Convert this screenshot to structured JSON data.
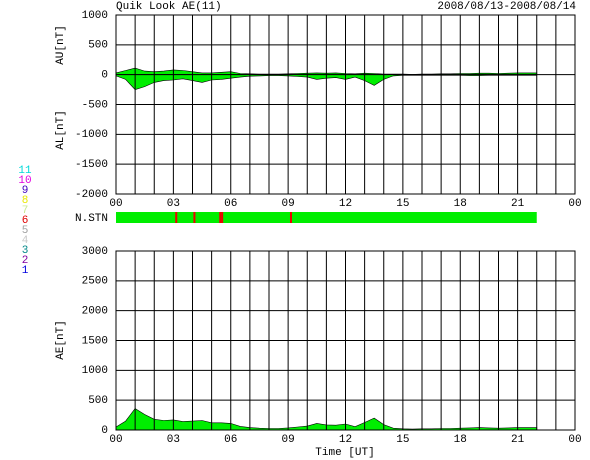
{
  "chart_data": [
    {
      "type": "area",
      "title": "Quik Look AE(11)",
      "date_range": "2008/08/13-2008/08/14",
      "ylabels": [
        "AU[nT]",
        "AL[nT]"
      ],
      "x": [
        0,
        0.5,
        1,
        1.5,
        2,
        2.5,
        3,
        3.5,
        4,
        4.5,
        5,
        5.5,
        6,
        6.5,
        7,
        7.5,
        8,
        8.5,
        9,
        9.5,
        10,
        10.5,
        11,
        11.5,
        12,
        12.5,
        13,
        13.5,
        14,
        14.5,
        15,
        15.5,
        16,
        16.5,
        17,
        17.5,
        18,
        18.5,
        19,
        19.5,
        20,
        20.5,
        21,
        21.5,
        22
      ],
      "series": [
        {
          "color": "#00ee00",
          "values": [
            30,
            70,
            110,
            60,
            50,
            60,
            80,
            70,
            50,
            30,
            30,
            40,
            50,
            20,
            15,
            10,
            10,
            10,
            15,
            20,
            25,
            30,
            25,
            30,
            20,
            15,
            25,
            20,
            10,
            10,
            10,
            5,
            10,
            10,
            15,
            15,
            20,
            20,
            25,
            25,
            20,
            25,
            30,
            30,
            30
          ]
        },
        {
          "color": "#00ee00",
          "values": [
            -20,
            -80,
            -250,
            -200,
            -130,
            -100,
            -90,
            -70,
            -100,
            -130,
            -90,
            -80,
            -60,
            -40,
            -25,
            -20,
            -15,
            -15,
            -20,
            -30,
            -40,
            -80,
            -60,
            -50,
            -80,
            -40,
            -100,
            -180,
            -80,
            -20,
            -10,
            -10,
            -10,
            -10,
            -10,
            -10,
            -10,
            -15,
            -15,
            -10,
            -10,
            -10,
            -10,
            -10,
            -10
          ]
        }
      ],
      "xlim": [
        0,
        24
      ],
      "ylim": [
        -2000,
        1000
      ],
      "xticks": [
        {
          "value": 0,
          "label": "00"
        },
        {
          "value": 3,
          "label": "03"
        },
        {
          "value": 6,
          "label": "06"
        },
        {
          "value": 9,
          "label": "09"
        },
        12,
        15,
        18,
        21,
        {
          "value": 24,
          "label": "00"
        }
      ],
      "minor_xticks": [
        1,
        2,
        4,
        5,
        7,
        8,
        10,
        11,
        13,
        14,
        16,
        17,
        19,
        20,
        22,
        23
      ],
      "yticks": [
        1000,
        500,
        0,
        -500,
        -1000,
        -1500,
        -2000
      ],
      "grid": true
    },
    {
      "type": "strip",
      "label": "N.STN",
      "xlim": [
        0,
        24
      ],
      "span": [
        0,
        22
      ],
      "color": "#00ee00",
      "drop_color": "#ee0000",
      "drops": [
        3.15,
        4.1,
        5.45,
        5.55,
        9.15
      ],
      "station_numbers": [
        {
          "label": "11",
          "color": "#00d8d8"
        },
        {
          "label": "10",
          "color": "#e000e0"
        },
        {
          "label": "9",
          "color": "#4000c0"
        },
        {
          "label": "8",
          "color": "#e8e800"
        },
        {
          "label": "7",
          "color": "#c8e890"
        },
        {
          "label": "6",
          "color": "#e00000"
        },
        {
          "label": "5",
          "color": "#a0a0a0"
        },
        {
          "label": "4",
          "color": "#c8c8c8"
        },
        {
          "label": "3",
          "color": "#008888"
        },
        {
          "label": "2",
          "color": "#8000a0"
        },
        {
          "label": "1",
          "color": "#0000e0"
        }
      ]
    },
    {
      "type": "area",
      "ylabel": "AE[nT]",
      "x_label": "Time [UT]",
      "x": [
        0,
        0.5,
        1,
        1.5,
        2,
        2.5,
        3,
        3.5,
        4,
        4.5,
        5,
        5.5,
        6,
        6.5,
        7,
        7.5,
        8,
        8.5,
        9,
        9.5,
        10,
        10.5,
        11,
        11.5,
        12,
        12.5,
        13,
        13.5,
        14,
        14.5,
        15,
        15.5,
        16,
        16.5,
        17,
        17.5,
        18,
        18.5,
        19,
        19.5,
        20,
        20.5,
        21,
        21.5,
        22
      ],
      "series": [
        {
          "color": "#00ee00",
          "values": [
            50,
            150,
            360,
            260,
            180,
            160,
            170,
            140,
            150,
            160,
            120,
            120,
            110,
            60,
            40,
            30,
            25,
            25,
            35,
            50,
            65,
            110,
            85,
            80,
            100,
            55,
            125,
            200,
            90,
            30,
            20,
            15,
            20,
            20,
            25,
            25,
            30,
            35,
            40,
            35,
            30,
            35,
            40,
            40,
            40
          ]
        }
      ],
      "xlim": [
        0,
        24
      ],
      "ylim": [
        0,
        3000
      ],
      "xticks": [
        {
          "value": 0,
          "label": "00"
        },
        {
          "value": 3,
          "label": "03"
        },
        {
          "value": 6,
          "label": "06"
        },
        {
          "value": 9,
          "label": "09"
        },
        12,
        15,
        18,
        21,
        {
          "value": 24,
          "label": "00"
        }
      ],
      "minor_xticks": [
        1,
        2,
        4,
        5,
        7,
        8,
        10,
        11,
        13,
        14,
        16,
        17,
        19,
        20,
        22,
        23
      ],
      "yticks": [
        0,
        500,
        1000,
        1500,
        2000,
        2500,
        3000
      ],
      "grid": true
    }
  ]
}
